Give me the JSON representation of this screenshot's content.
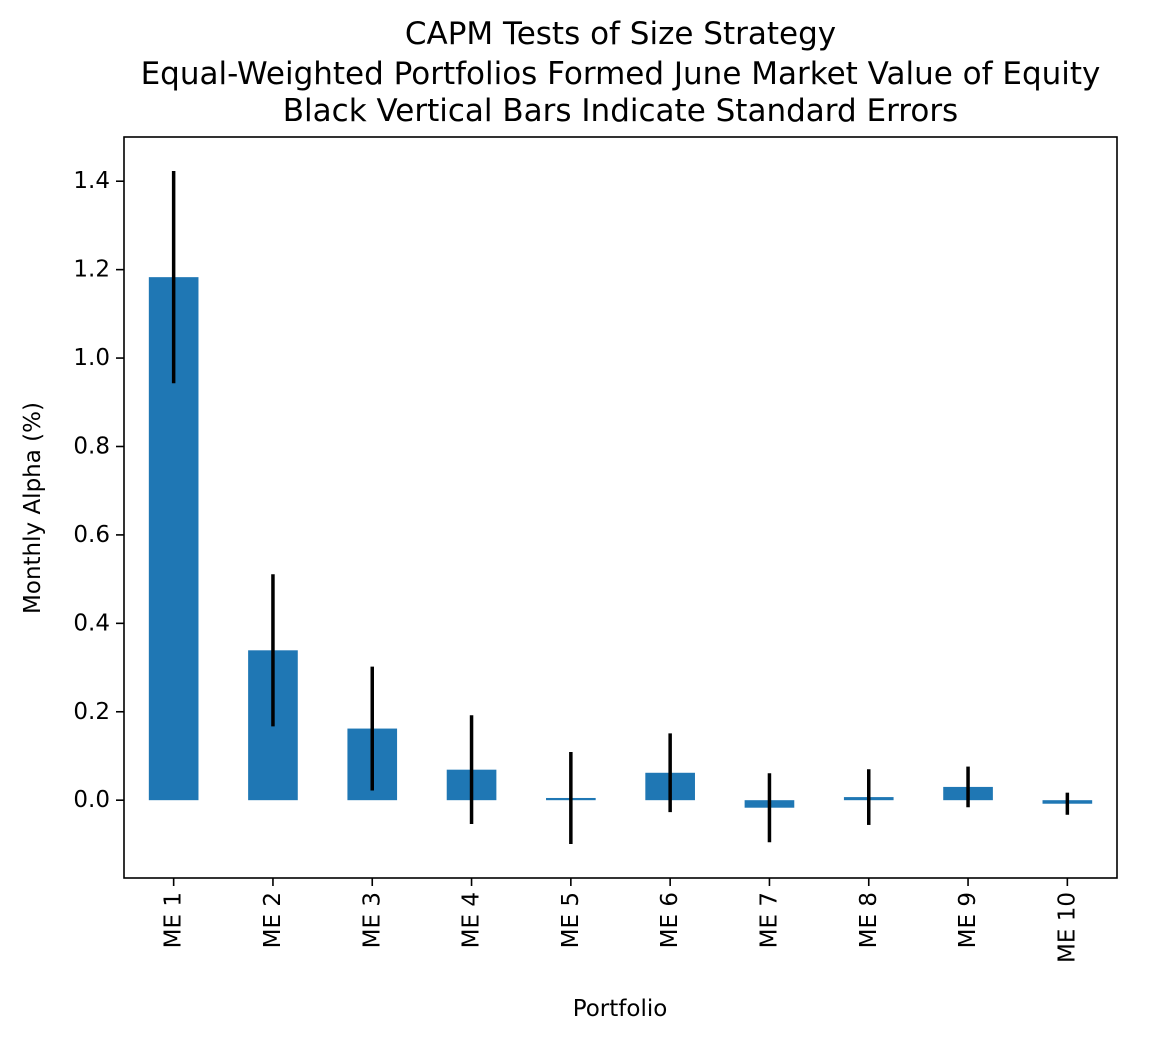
{
  "chart_data": {
    "type": "bar",
    "title_lines": [
      "CAPM Tests of Size Strategy",
      "Equal-Weighted Portfolios Formed June Market Value of Equity",
      "Black Vertical Bars Indicate Standard Errors"
    ],
    "xlabel": "Portfolio",
    "ylabel": "Monthly Alpha (%)",
    "categories": [
      "ME 1",
      "ME 2",
      "ME 3",
      "ME 4",
      "ME 5",
      "ME 6",
      "ME 7",
      "ME 8",
      "ME 9",
      "ME 10"
    ],
    "values": [
      1.183,
      0.339,
      0.162,
      0.069,
      0.005,
      0.062,
      -0.017,
      0.007,
      0.03,
      -0.008
    ],
    "errors": [
      0.24,
      0.172,
      0.14,
      0.123,
      0.104,
      0.089,
      0.078,
      0.063,
      0.046,
      0.025
    ],
    "ylim": [
      -0.176,
      1.5
    ],
    "yticks": [
      0.0,
      0.2,
      0.4,
      0.6,
      0.8,
      1.0,
      1.2,
      1.4
    ],
    "ytick_labels": [
      "0.0",
      "0.2",
      "0.4",
      "0.6",
      "0.8",
      "1.0",
      "1.2",
      "1.4"
    ],
    "grid": false,
    "bar_color": "#1f77b4",
    "error_color": "#000000"
  }
}
